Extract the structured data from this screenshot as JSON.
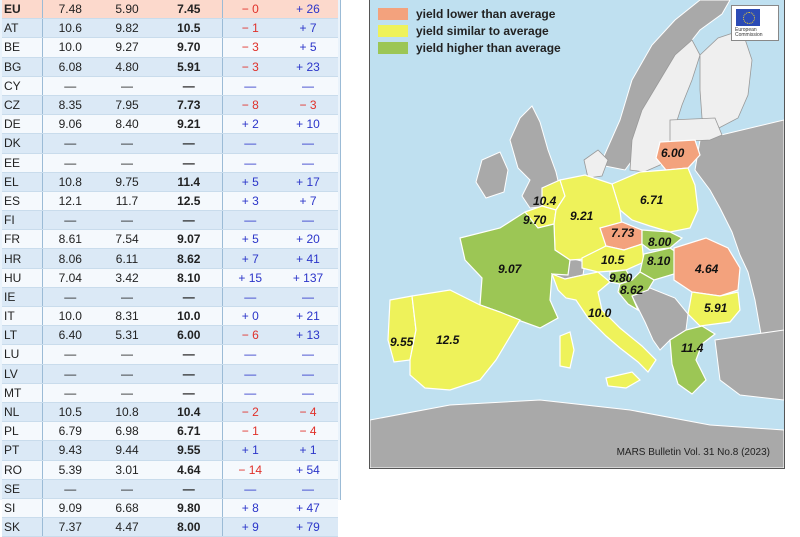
{
  "table": {
    "rows": [
      {
        "cc": "EU",
        "a": "7.48",
        "b": "5.90",
        "c": "7.45",
        "d": "− 0",
        "e": "+ 26",
        "dneg": true,
        "eneg": false
      },
      {
        "cc": "AT",
        "a": "10.6",
        "b": "9.82",
        "c": "10.5",
        "d": "− 1",
        "e": "+ 7",
        "dneg": true,
        "eneg": false
      },
      {
        "cc": "BE",
        "a": "10.0",
        "b": "9.27",
        "c": "9.70",
        "d": "− 3",
        "e": "+ 5",
        "dneg": true,
        "eneg": false
      },
      {
        "cc": "BG",
        "a": "6.08",
        "b": "4.80",
        "c": "5.91",
        "d": "− 3",
        "e": "+ 23",
        "dneg": true,
        "eneg": false
      },
      {
        "cc": "CY",
        "a": "—",
        "b": "—",
        "c": "—",
        "d": "—",
        "e": "—",
        "dneg": false,
        "eneg": false
      },
      {
        "cc": "CZ",
        "a": "8.35",
        "b": "7.95",
        "c": "7.73",
        "d": "− 8",
        "e": "− 3",
        "dneg": true,
        "eneg": true
      },
      {
        "cc": "DE",
        "a": "9.06",
        "b": "8.40",
        "c": "9.21",
        "d": "+ 2",
        "e": "+ 10",
        "dneg": false,
        "eneg": false
      },
      {
        "cc": "DK",
        "a": "—",
        "b": "—",
        "c": "—",
        "d": "—",
        "e": "—",
        "dneg": false,
        "eneg": false
      },
      {
        "cc": "EE",
        "a": "—",
        "b": "—",
        "c": "—",
        "d": "—",
        "e": "—",
        "dneg": false,
        "eneg": false
      },
      {
        "cc": "EL",
        "a": "10.8",
        "b": "9.75",
        "c": "11.4",
        "d": "+ 5",
        "e": "+ 17",
        "dneg": false,
        "eneg": false
      },
      {
        "cc": "ES",
        "a": "12.1",
        "b": "11.7",
        "c": "12.5",
        "d": "+ 3",
        "e": "+ 7",
        "dneg": false,
        "eneg": false
      },
      {
        "cc": "FI",
        "a": "—",
        "b": "—",
        "c": "—",
        "d": "—",
        "e": "—",
        "dneg": false,
        "eneg": false
      },
      {
        "cc": "FR",
        "a": "8.61",
        "b": "7.54",
        "c": "9.07",
        "d": "+ 5",
        "e": "+ 20",
        "dneg": false,
        "eneg": false
      },
      {
        "cc": "HR",
        "a": "8.06",
        "b": "6.11",
        "c": "8.62",
        "d": "+ 7",
        "e": "+ 41",
        "dneg": false,
        "eneg": false
      },
      {
        "cc": "HU",
        "a": "7.04",
        "b": "3.42",
        "c": "8.10",
        "d": "+ 15",
        "e": "+ 137",
        "dneg": false,
        "eneg": false
      },
      {
        "cc": "IE",
        "a": "—",
        "b": "—",
        "c": "—",
        "d": "—",
        "e": "—",
        "dneg": false,
        "eneg": false
      },
      {
        "cc": "IT",
        "a": "10.0",
        "b": "8.31",
        "c": "10.0",
        "d": "+ 0",
        "e": "+ 21",
        "dneg": false,
        "eneg": false
      },
      {
        "cc": "LT",
        "a": "6.40",
        "b": "5.31",
        "c": "6.00",
        "d": "− 6",
        "e": "+ 13",
        "dneg": true,
        "eneg": false
      },
      {
        "cc": "LU",
        "a": "—",
        "b": "—",
        "c": "—",
        "d": "—",
        "e": "—",
        "dneg": false,
        "eneg": false
      },
      {
        "cc": "LV",
        "a": "—",
        "b": "—",
        "c": "—",
        "d": "—",
        "e": "—",
        "dneg": false,
        "eneg": false
      },
      {
        "cc": "MT",
        "a": "—",
        "b": "—",
        "c": "—",
        "d": "—",
        "e": "—",
        "dneg": false,
        "eneg": false
      },
      {
        "cc": "NL",
        "a": "10.5",
        "b": "10.8",
        "c": "10.4",
        "d": "− 2",
        "e": "− 4",
        "dneg": true,
        "eneg": true
      },
      {
        "cc": "PL",
        "a": "6.79",
        "b": "6.98",
        "c": "6.71",
        "d": "− 1",
        "e": "− 4",
        "dneg": true,
        "eneg": true
      },
      {
        "cc": "PT",
        "a": "9.43",
        "b": "9.44",
        "c": "9.55",
        "d": "+ 1",
        "e": "+ 1",
        "dneg": false,
        "eneg": false
      },
      {
        "cc": "RO",
        "a": "5.39",
        "b": "3.01",
        "c": "4.64",
        "d": "− 14",
        "e": "+ 54",
        "dneg": true,
        "eneg": false
      },
      {
        "cc": "SE",
        "a": "—",
        "b": "—",
        "c": "—",
        "d": "—",
        "e": "—",
        "dneg": false,
        "eneg": false
      },
      {
        "cc": "SI",
        "a": "9.09",
        "b": "6.68",
        "c": "9.80",
        "d": "+ 8",
        "e": "+ 47",
        "dneg": false,
        "eneg": false
      },
      {
        "cc": "SK",
        "a": "7.37",
        "b": "4.47",
        "c": "8.00",
        "d": "+ 9",
        "e": "+ 79",
        "dneg": false,
        "eneg": false
      }
    ]
  },
  "legend": {
    "lower": {
      "label": "yield lower than average",
      "color": "#f3a27d"
    },
    "similar": {
      "label": "yield similar to average",
      "color": "#eef25a"
    },
    "higher": {
      "label": "yield higher than average",
      "color": "#9cc655"
    }
  },
  "colors": {
    "sea": "#bfe0f0",
    "non_eu_land": "#a9a9a9",
    "no_data_land": "#efefef"
  },
  "map_values": {
    "LT": "6.00",
    "PL": "6.71",
    "NL": "10.4",
    "BE": "9.70",
    "DE": "9.21",
    "CZ": "7.73",
    "SK": "8.00",
    "HU": "8.10",
    "AT": "10.5",
    "SI": "9.80",
    "HR": "8.62",
    "RO": "4.64",
    "FR": "9.07",
    "BG": "5.91",
    "IT": "10.0",
    "EL": "11.4",
    "PT": "9.55",
    "ES": "12.5"
  },
  "flag": {
    "caption": "European Commission"
  },
  "source": "MARS Bulletin Vol. 31 No.8 (2023)"
}
